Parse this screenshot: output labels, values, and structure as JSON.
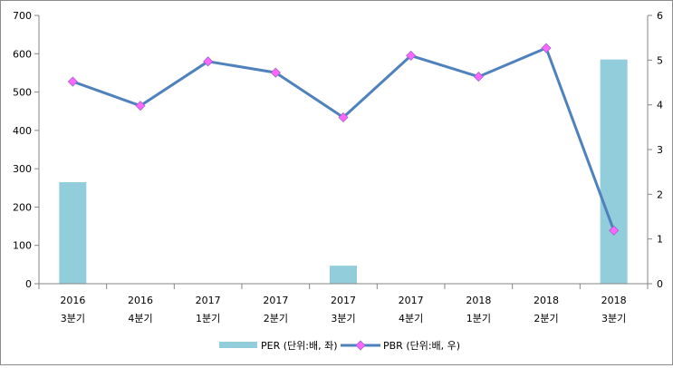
{
  "chart_data": {
    "type": "bar+line",
    "categories": [
      [
        "2016",
        "3분기"
      ],
      [
        "2016",
        "4분기"
      ],
      [
        "2017",
        "1분기"
      ],
      [
        "2017",
        "2분기"
      ],
      [
        "2017",
        "3분기"
      ],
      [
        "2017",
        "4분기"
      ],
      [
        "2018",
        "1분기"
      ],
      [
        "2018",
        "2분기"
      ],
      [
        "2018",
        "3분기"
      ]
    ],
    "series": [
      {
        "name": "PER (단위:배, 좌)",
        "type": "bar",
        "axis": "left",
        "color": "#92cddc",
        "values": [
          265,
          null,
          null,
          null,
          47,
          null,
          null,
          null,
          585
        ]
      },
      {
        "name": "PBR (단위:배, 우)",
        "type": "line",
        "axis": "right",
        "color": "#4f81bd",
        "marker_color": "#ff66ff",
        "marker": "diamond",
        "values": [
          4.52,
          3.98,
          4.97,
          4.72,
          3.72,
          5.1,
          4.63,
          5.27,
          1.19
        ]
      }
    ],
    "y_left": {
      "range": [
        0,
        700
      ],
      "ticks": [
        "0",
        "100",
        "200",
        "300",
        "400",
        "500",
        "600",
        "700"
      ]
    },
    "y_right": {
      "range": [
        0,
        6
      ],
      "ticks": [
        "0",
        "1",
        "2",
        "3",
        "4",
        "5",
        "6"
      ]
    },
    "grid": false,
    "legend": "bottom"
  }
}
